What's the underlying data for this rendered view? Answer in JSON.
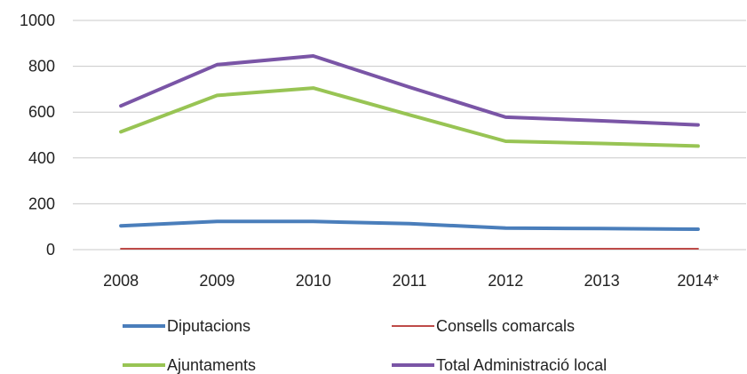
{
  "chart_data": {
    "type": "line",
    "categories": [
      "2008",
      "2009",
      "2010",
      "2011",
      "2012",
      "2013",
      "2014*"
    ],
    "ylim": [
      0,
      1000
    ],
    "yticks": [
      "0",
      "200",
      "400",
      "600",
      "800",
      "1000"
    ],
    "grid": true,
    "legend_placement": "bottom",
    "series": [
      {
        "name": "Diputacions",
        "color": "#4a7ebb",
        "values": [
          104,
          123,
          123,
          113,
          94,
          92,
          89
        ]
      },
      {
        "name": "Consells comarcals",
        "color": "#be4b48",
        "values": [
          4,
          4,
          4,
          4,
          4,
          4,
          4
        ]
      },
      {
        "name": "Ajuntaments",
        "color": "#98c454",
        "values": [
          514,
          673,
          705,
          588,
          473,
          463,
          452
        ]
      },
      {
        "name": "Total Administració local",
        "color": "#7a55a6",
        "values": [
          627,
          807,
          845,
          709,
          578,
          562,
          544
        ]
      }
    ]
  }
}
